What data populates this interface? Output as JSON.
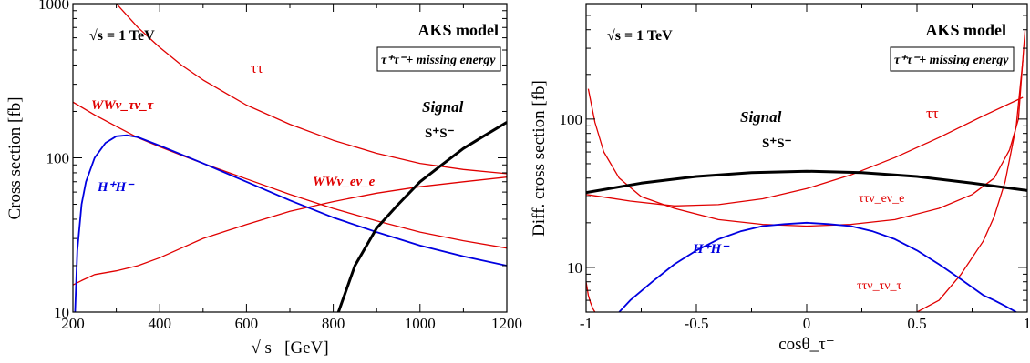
{
  "chart_data": [
    {
      "type": "line",
      "xlabel": "√ s   [GeV]",
      "ylabel": "Cross section [fb]",
      "xlim": [
        200,
        1200
      ],
      "ylim": [
        10,
        1000
      ],
      "yscale": "log",
      "xticks": [
        "200",
        "400",
        "600",
        "800",
        "1000",
        "1200"
      ],
      "yticks": [
        "10",
        "100",
        "1000"
      ],
      "sqrt_s_label": "√s = 1 TeV",
      "model_label": "AKS model",
      "process_label": "τ⁺τ⁻+ missing energy",
      "series": [
        {
          "name": "ττ",
          "color": "#e00000",
          "x": [
            300,
            350,
            400,
            450,
            500,
            600,
            700,
            800,
            900,
            1000,
            1100,
            1200
          ],
          "y": [
            1000,
            700,
            520,
            400,
            320,
            220,
            165,
            130,
            107,
            92,
            84,
            79
          ]
        },
        {
          "name": "WWν_τν_τ",
          "color": "#e00000",
          "x": [
            200,
            250,
            300,
            350,
            400,
            450,
            500,
            600,
            700,
            800,
            900,
            1000,
            1100,
            1200
          ],
          "y": [
            230,
            190,
            160,
            135,
            118,
            104,
            92,
            73,
            58,
            47,
            39,
            33,
            29,
            26
          ]
        },
        {
          "name": "WWν_eν_e",
          "color": "#e00000",
          "x": [
            200,
            220,
            250,
            300,
            350,
            400,
            450,
            500,
            600,
            700,
            800,
            900,
            1000,
            1100,
            1200
          ],
          "y": [
            15,
            16,
            17.5,
            18.5,
            20,
            22.5,
            26,
            30,
            37,
            45,
            52,
            59,
            65,
            70,
            75
          ]
        },
        {
          "name": "H⁺H⁻",
          "color": "#0000e0",
          "x": [
            205,
            210,
            220,
            230,
            250,
            275,
            300,
            325,
            350,
            400,
            500,
            600,
            700,
            800,
            900,
            1000,
            1100,
            1200
          ],
          "y": [
            10,
            25,
            50,
            70,
            100,
            125,
            138,
            140,
            136,
            120,
            92,
            70,
            53,
            41,
            33,
            27,
            23,
            20
          ]
        },
        {
          "name": "Signal S⁺S⁻",
          "color": "#000000",
          "x": [
            812,
            850,
            900,
            950,
            1000,
            1050,
            1100,
            1150,
            1200
          ],
          "y": [
            10,
            20,
            35,
            50,
            70,
            90,
            115,
            140,
            170
          ]
        }
      ],
      "annotations": [
        "ττ",
        "WWν_τν_τ",
        "WWν_eν_e",
        "H⁺H⁻",
        "Signal",
        "S⁺S⁻"
      ]
    },
    {
      "type": "line",
      "xlabel": "cosθ_τ⁻",
      "ylabel": "Diff. cross section [fb]",
      "xlim": [
        -1,
        1
      ],
      "ylim": [
        5,
        600
      ],
      "yscale": "log",
      "xticks": [
        "-1",
        "-0.5",
        "0",
        "0.5",
        "1"
      ],
      "yticks": [
        "10",
        "100"
      ],
      "sqrt_s_label": "√s = 1 TeV",
      "model_label": "AKS model",
      "process_label": "τ⁺τ⁻+ missing energy",
      "series": [
        {
          "name": "ττ",
          "color": "#e00000",
          "x": [
            -1,
            -0.9,
            -0.8,
            -0.6,
            -0.4,
            -0.2,
            0,
            0.2,
            0.4,
            0.6,
            0.8,
            0.98
          ],
          "y": [
            31,
            29.5,
            28,
            26,
            26.5,
            29,
            34,
            42,
            55,
            75,
            105,
            140
          ]
        },
        {
          "name": "ττν_eν_e",
          "color": "#e00000",
          "x": [
            -0.99,
            -0.96,
            -0.92,
            -0.85,
            -0.75,
            -0.6,
            -0.4,
            -0.2,
            0,
            0.2,
            0.4,
            0.6,
            0.75,
            0.85,
            0.92,
            0.96,
            0.99
          ],
          "y": [
            160,
            95,
            60,
            40,
            30,
            25,
            21,
            19.5,
            19,
            19.5,
            21,
            25,
            31,
            40,
            62,
            100,
            400
          ]
        },
        {
          "name": "ττν_τν_τ",
          "color": "#e00000",
          "x": [
            -1,
            -0.99,
            -0.98,
            -0.97,
            -0.96
          ],
          "y": [
            8,
            6.5,
            5.8,
            5.3,
            5
          ]
        },
        {
          "name": "ττν_τν_τ (rise)",
          "color": "#e00000",
          "x": [
            0.5,
            0.6,
            0.7,
            0.8,
            0.85,
            0.9,
            0.95,
            0.98
          ],
          "y": [
            5,
            6,
            9,
            15,
            22,
            38,
            90,
            250
          ]
        },
        {
          "name": "Signal S⁺S⁻",
          "color": "#000000",
          "x": [
            -1,
            -0.75,
            -0.5,
            -0.25,
            0,
            0.25,
            0.5,
            0.75,
            1
          ],
          "y": [
            32,
            37,
            41,
            43.5,
            44.5,
            43.5,
            41,
            37,
            33
          ]
        },
        {
          "name": "H⁺H⁻",
          "color": "#0000e0",
          "x": [
            -0.85,
            -0.8,
            -0.7,
            -0.6,
            -0.5,
            -0.4,
            -0.3,
            -0.2,
            -0.1,
            0,
            0.1,
            0.2,
            0.3,
            0.4,
            0.5,
            0.6,
            0.7,
            0.8,
            0.85,
            0.9,
            0.95
          ],
          "y": [
            5,
            6,
            8,
            10.5,
            13,
            15.5,
            17.5,
            19,
            19.6,
            20,
            19.6,
            19,
            17.5,
            15.5,
            13,
            10.5,
            8.3,
            6.5,
            6,
            5.5,
            5
          ]
        }
      ],
      "annotations": [
        "Signal",
        "S⁺S⁻",
        "ττ",
        "ττν_eν_e",
        "H⁺H⁻",
        "ττν_τν_τ"
      ]
    }
  ]
}
